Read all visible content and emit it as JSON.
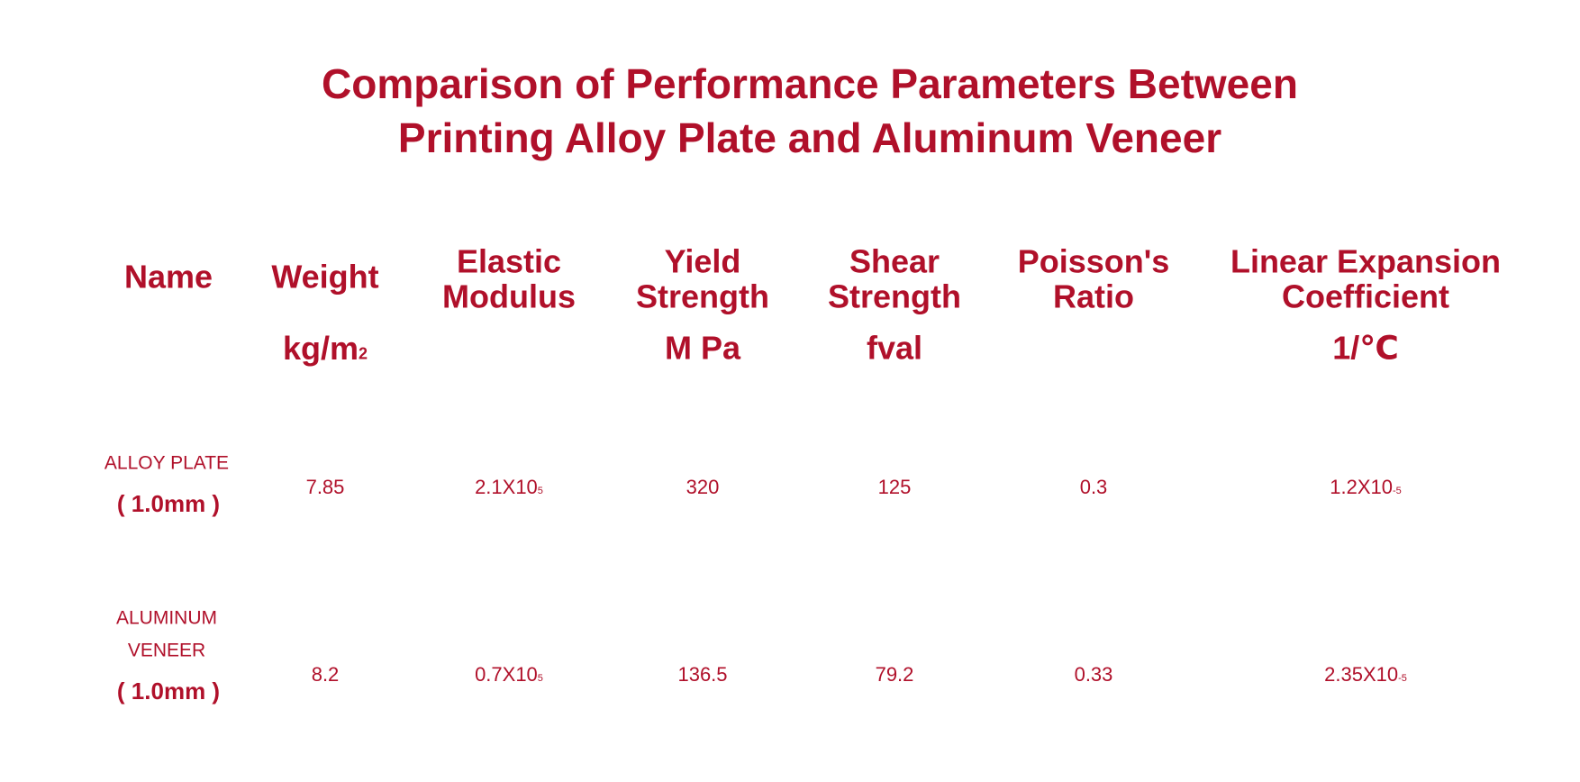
{
  "title": [
    "Comparison of Performance Parameters Between",
    "Printing Alloy Plate and Aluminum Veneer"
  ],
  "columns": [
    {
      "label": [
        "Name"
      ]
    },
    {
      "label": [
        "Weight"
      ],
      "unit": {
        "base": "kg/m",
        "exponent": "2"
      }
    },
    {
      "label": [
        "Elastic",
        "Modulus"
      ]
    },
    {
      "label": [
        "Yield",
        "Strength"
      ],
      "unit": "M Pa"
    },
    {
      "label": [
        "Shear",
        "Strength"
      ],
      "unit": "fval"
    },
    {
      "label": [
        "Poisson's",
        "Ratio"
      ]
    },
    {
      "label": [
        "Linear Expansion",
        "Coefficient"
      ],
      "unit": "1/℃"
    }
  ],
  "rows": [
    {
      "name": [
        "ALLOY PLATE"
      ],
      "size": "( 1.0mm )",
      "cells": [
        7.85,
        {
          "base": "2.1X10",
          "exponent": "5"
        },
        320,
        125,
        0.3,
        {
          "base": "1.2X10",
          "exponent": "-5"
        }
      ]
    },
    {
      "name": [
        "ALUMINUM",
        "VENEER"
      ],
      "size": "( 1.0mm )",
      "cells": [
        8.2,
        {
          "base": "0.7X10",
          "exponent": "5"
        },
        136.5,
        79.2,
        0.33,
        {
          "base": "2.35X10",
          "exponent": "-5"
        }
      ]
    }
  ]
}
